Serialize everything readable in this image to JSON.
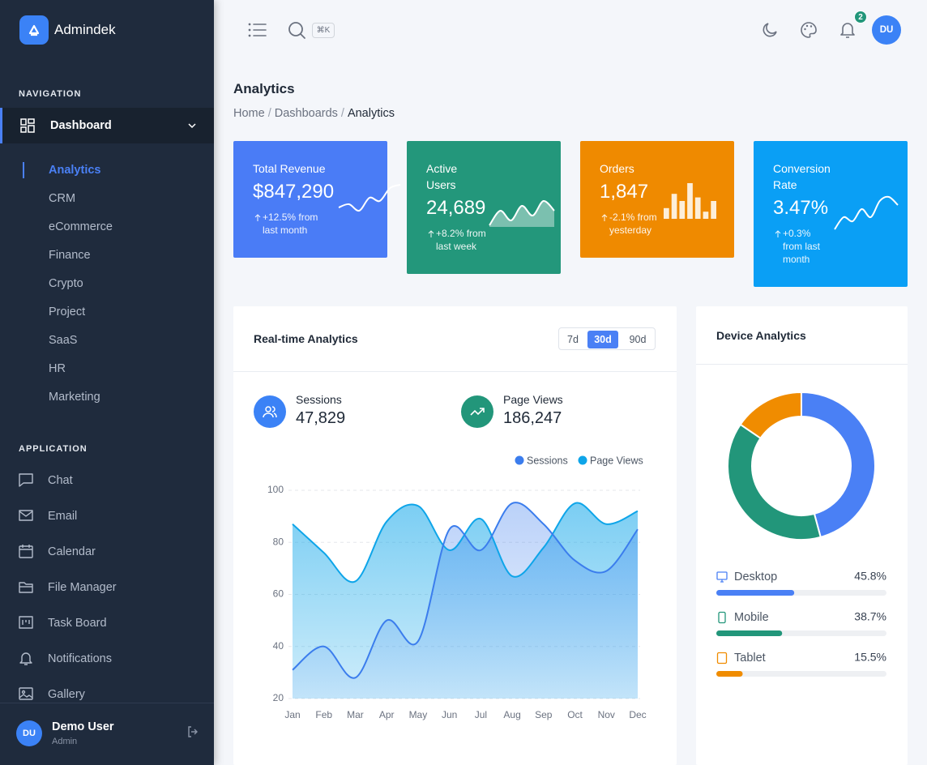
{
  "sidebar": {
    "brand": "Admindek",
    "sections": [
      {
        "heading": "NAVIGATION",
        "group": "Dashboard",
        "items": [
          "Analytics",
          "CRM",
          "eCommerce",
          "Finance",
          "Crypto",
          "Project",
          "SaaS",
          "HR",
          "Marketing"
        ],
        "active": 0
      },
      {
        "heading": "APPLICATION",
        "items": [
          "Chat",
          "Email",
          "Calendar",
          "File Manager",
          "Task Board",
          "Notifications",
          "Gallery"
        ]
      }
    ],
    "user": {
      "initials": "DU",
      "name": "Demo User",
      "role": "Admin"
    }
  },
  "topbar": {
    "shortcut": "⌘K",
    "notification_count": 2,
    "avatar": "DU"
  },
  "header": {
    "title": "Analytics",
    "breadcrumb": [
      "Home",
      "Dashboards",
      "Analytics"
    ],
    "separator": "/"
  },
  "cards": [
    {
      "title": "Total Revenue",
      "value": "$847,290",
      "change": "+12.5% from last month",
      "color": "#4a7cf6",
      "spark": {
        "type": "line",
        "values": [
          2,
          3,
          1,
          5,
          4,
          8,
          9
        ]
      }
    },
    {
      "title": "Active Users",
      "value": "24,689",
      "change": "+8.2% from last week",
      "color": "#23977b",
      "spark": {
        "type": "area",
        "values": [
          2,
          5,
          3,
          6,
          4,
          7,
          5
        ]
      }
    },
    {
      "title": "Orders",
      "value": "1,847",
      "change": "-2.1% from yesterday",
      "color": "#ef8a00",
      "spark": {
        "type": "bar",
        "values": [
          3,
          7,
          5,
          10,
          6,
          2,
          5
        ]
      }
    },
    {
      "title": "Conversion Rate",
      "value": "3.47%",
      "change": "+0.3% from last month",
      "color": "#0a9ff5",
      "spark": {
        "type": "line",
        "values": [
          1,
          4,
          3,
          6,
          4,
          8,
          9,
          7
        ]
      }
    }
  ],
  "chart_data": [
    {
      "type": "area",
      "title": "Real-time Analytics",
      "periods": [
        "7d",
        "30d",
        "90d"
      ],
      "active_period": 1,
      "stats": [
        {
          "name": "Sessions",
          "value": "47,829"
        },
        {
          "name": "Page Views",
          "value": "186,247"
        }
      ],
      "categories": [
        "Jan",
        "Feb",
        "Mar",
        "Apr",
        "May",
        "Jun",
        "Jul",
        "Aug",
        "Sep",
        "Oct",
        "Nov",
        "Dec"
      ],
      "series": [
        {
          "name": "Sessions",
          "color": "#3b7ded",
          "values": [
            31,
            40,
            28,
            50,
            42,
            85,
            77,
            95,
            87,
            73,
            69,
            85
          ]
        },
        {
          "name": "Page Views",
          "color": "#0ea5e9",
          "values": [
            87,
            76,
            65,
            88,
            94,
            77,
            89,
            67,
            78,
            95,
            87,
            92
          ]
        }
      ],
      "ylim": [
        20,
        100
      ],
      "yticks": [
        20,
        40,
        60,
        80,
        100
      ],
      "grid": true
    },
    {
      "type": "donut",
      "title": "Device Analytics",
      "categories": [
        "Desktop",
        "Mobile",
        "Tablet"
      ],
      "values": [
        45.8,
        38.7,
        15.5
      ],
      "value_labels": [
        "45.8%",
        "38.7%",
        "15.5%"
      ],
      "colors": [
        "#4a80f5",
        "#22967a",
        "#f08c00"
      ]
    }
  ]
}
